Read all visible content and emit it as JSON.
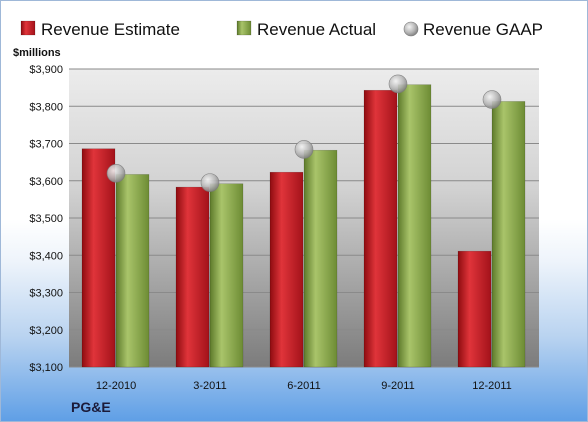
{
  "company": "PG&E",
  "chart_data": {
    "type": "bar",
    "categories": [
      "12-2010",
      "3-2011",
      "6-2011",
      "9-2011",
      "12-2011"
    ],
    "series": [
      {
        "name": "Revenue Estimate",
        "kind": "bar",
        "color": "#c8181f",
        "values": [
          3686,
          3583,
          3623,
          3843,
          3411
        ]
      },
      {
        "name": "Revenue Actual",
        "kind": "bar",
        "color": "#8aaa4a",
        "values": [
          3617,
          3592,
          3682,
          3858,
          3813
        ]
      },
      {
        "name": "Revenue GAAP",
        "kind": "marker",
        "color": "#b8b8b8",
        "values": [
          3620,
          3595,
          3684,
          3860,
          3818
        ]
      }
    ],
    "ylabel": "$millions",
    "ylim": [
      3100,
      3900
    ],
    "ytick_step": 100,
    "ytick_labels": [
      "$3,100",
      "$3,200",
      "$3,300",
      "$3,400",
      "$3,500",
      "$3,600",
      "$3,700",
      "$3,800",
      "$3,900"
    ],
    "grid": true,
    "legend": "top"
  }
}
